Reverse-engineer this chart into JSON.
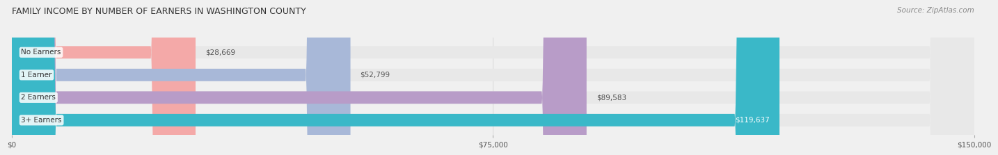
{
  "title": "FAMILY INCOME BY NUMBER OF EARNERS IN WASHINGTON COUNTY",
  "source": "Source: ZipAtlas.com",
  "categories": [
    "No Earners",
    "1 Earner",
    "2 Earners",
    "3+ Earners"
  ],
  "values": [
    28669,
    52799,
    89583,
    119637
  ],
  "bar_colors": [
    "#f4a9a8",
    "#a8b8d8",
    "#b89cc8",
    "#3ab8c8"
  ],
  "value_labels": [
    "$28,669",
    "$52,799",
    "$89,583",
    "$119,637"
  ],
  "xlim": [
    0,
    150000
  ],
  "xticks": [
    0,
    75000,
    150000
  ],
  "xtick_labels": [
    "$0",
    "$75,000",
    "$150,000"
  ],
  "bar_height": 0.55,
  "background_color": "#f0f0f0",
  "bar_background_color": "#e8e8e8",
  "title_fontsize": 9,
  "source_fontsize": 7.5,
  "label_fontsize": 7.5,
  "value_fontsize": 7.5
}
